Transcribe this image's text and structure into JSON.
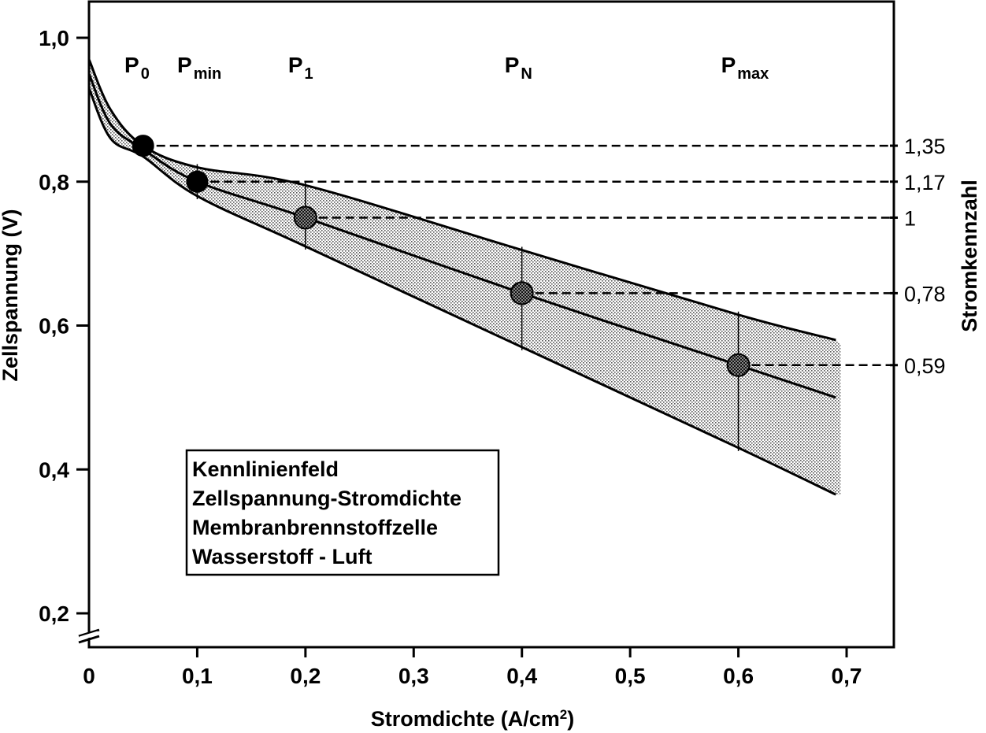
{
  "chart_data": {
    "type": "line",
    "xlabel": "Stromdichte (A/cm",
    "xlabel_sup": "2",
    "xlabel_close": ")",
    "ylabel": "Zellspannung (V)",
    "y2label": "Stromkennzahl",
    "xlim": [
      0,
      0.7
    ],
    "ylim": [
      0.2,
      1.0
    ],
    "xticks": [
      {
        "value": 0,
        "label": "0"
      },
      {
        "value": 0.1,
        "label": "0,1"
      },
      {
        "value": 0.2,
        "label": "0,2"
      },
      {
        "value": 0.3,
        "label": "0,3"
      },
      {
        "value": 0.4,
        "label": "0,4"
      },
      {
        "value": 0.5,
        "label": "0,5"
      },
      {
        "value": 0.6,
        "label": "0,6"
      },
      {
        "value": 0.7,
        "label": "0,7"
      }
    ],
    "yticks": [
      {
        "value": 1.0,
        "label": "1,0"
      },
      {
        "value": 0.8,
        "label": "0,8"
      },
      {
        "value": 0.6,
        "label": "0,6"
      },
      {
        "value": 0.4,
        "label": "0,4"
      },
      {
        "value": 0.2,
        "label": "0,2"
      }
    ],
    "series": [
      {
        "x": [
          0,
          0.02,
          0.05,
          0.1,
          0.2,
          0.4,
          0.6,
          0.69
        ],
        "y": [
          0.97,
          0.9,
          0.85,
          0.82,
          0.795,
          0.705,
          0.615,
          0.58
        ]
      },
      {
        "x": [
          0,
          0.02,
          0.05,
          0.1,
          0.2,
          0.4,
          0.6,
          0.69
        ],
        "y": [
          0.95,
          0.88,
          0.845,
          0.8,
          0.75,
          0.645,
          0.545,
          0.5
        ]
      },
      {
        "x": [
          0,
          0.02,
          0.05,
          0.1,
          0.2,
          0.4,
          0.6,
          0.69
        ],
        "y": [
          0.93,
          0.86,
          0.835,
          0.78,
          0.71,
          0.57,
          0.43,
          0.365
        ]
      }
    ],
    "band": {
      "x_max": 0.69
    },
    "points": [
      {
        "label": "P",
        "sub": "0",
        "x": 0.05,
        "y": 0.85,
        "style": "solid",
        "ratio": "1,35"
      },
      {
        "label": "P",
        "sub": "min",
        "x": 0.1,
        "y": 0.8,
        "style": "solid",
        "ratio": "1,17"
      },
      {
        "label": "P",
        "sub": "1",
        "x": 0.2,
        "y": 0.75,
        "style": "hatched",
        "ratio": "1"
      },
      {
        "label": "P",
        "sub": "N",
        "x": 0.4,
        "y": 0.645,
        "style": "hatched",
        "ratio": "0,78"
      },
      {
        "label": "P",
        "sub": "max",
        "x": 0.6,
        "y": 0.545,
        "style": "hatched",
        "ratio": "0,59"
      }
    ],
    "legend": {
      "lines": [
        "Kennlinienfeld",
        "Zellspannung-Stromdichte",
        "Membranbrennstoffzelle",
        "Wasserstoff - Luft"
      ],
      "placement": "lower-left"
    },
    "grid": false
  }
}
